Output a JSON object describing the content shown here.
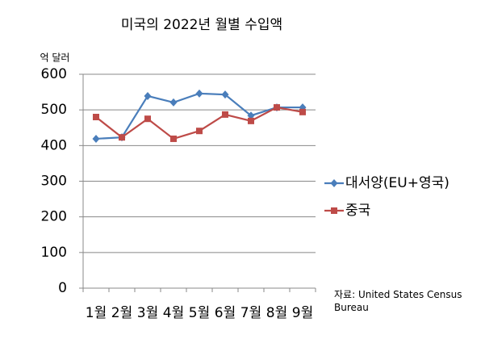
{
  "chart_data": {
    "type": "line",
    "title": "미국의 2022년 월별 수입액",
    "y_label": "억 달러",
    "note": "자료: United States Census Bureau",
    "categories": [
      "1월",
      "2월",
      "3월",
      "4월",
      "5월",
      "6월",
      "7월",
      "8월",
      "9월"
    ],
    "series": [
      {
        "name": "대서양(EU+영국)",
        "color": "#4a7ebb",
        "marker": "diamond",
        "values": [
          419,
          423,
          539,
          521,
          546,
          543,
          484,
          507,
          507
        ]
      },
      {
        "name": "중국",
        "color": "#be4b48",
        "marker": "square",
        "values": [
          480,
          423,
          475,
          419,
          441,
          487,
          469,
          507,
          494
        ]
      }
    ],
    "ylim": [
      0,
      600
    ],
    "yticks": [
      0,
      100,
      200,
      300,
      400,
      500,
      600
    ],
    "grid": true,
    "legend": "right"
  }
}
